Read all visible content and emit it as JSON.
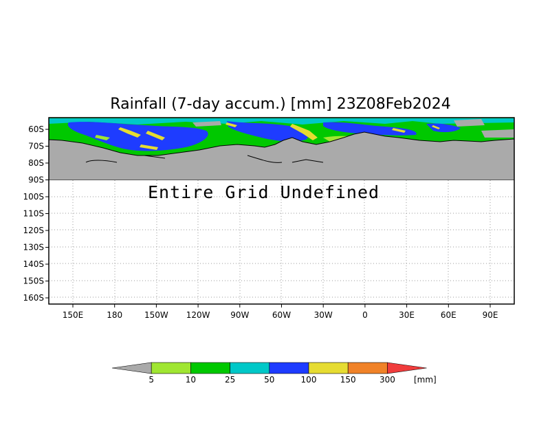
{
  "title": "Rainfall (7-day accum.) [mm] 23Z08Feb2024",
  "message": "Entire Grid Undefined",
  "colors": {
    "undefined_land": "#aaaaaa",
    "bin_0": "#aaaaaa",
    "bin_5": "#a0e632",
    "bin_10": "#00c800",
    "bin_25": "#00c8c8",
    "bin_50": "#1e3cff",
    "bin_100": "#e6dc32",
    "bin_150": "#f08228",
    "bin_300": "#f03c3c"
  },
  "axes": {
    "lat_labels": [
      "60S",
      "70S",
      "80S",
      "90S",
      "100S",
      "110S",
      "120S",
      "130S",
      "140S",
      "150S",
      "160S"
    ],
    "lon_labels": [
      "150E",
      "180",
      "150W",
      "120W",
      "90W",
      "60W",
      "30W",
      "0",
      "30E",
      "60E",
      "90E"
    ]
  },
  "colorbar": {
    "thresholds": [
      "5",
      "10",
      "25",
      "50",
      "100",
      "150",
      "300"
    ],
    "unit": "[mm]",
    "colors": [
      "#aaaaaa",
      "#a0e632",
      "#00c800",
      "#00c8c8",
      "#1e3cff",
      "#e6dc32",
      "#f08228",
      "#f03c3c"
    ]
  }
}
